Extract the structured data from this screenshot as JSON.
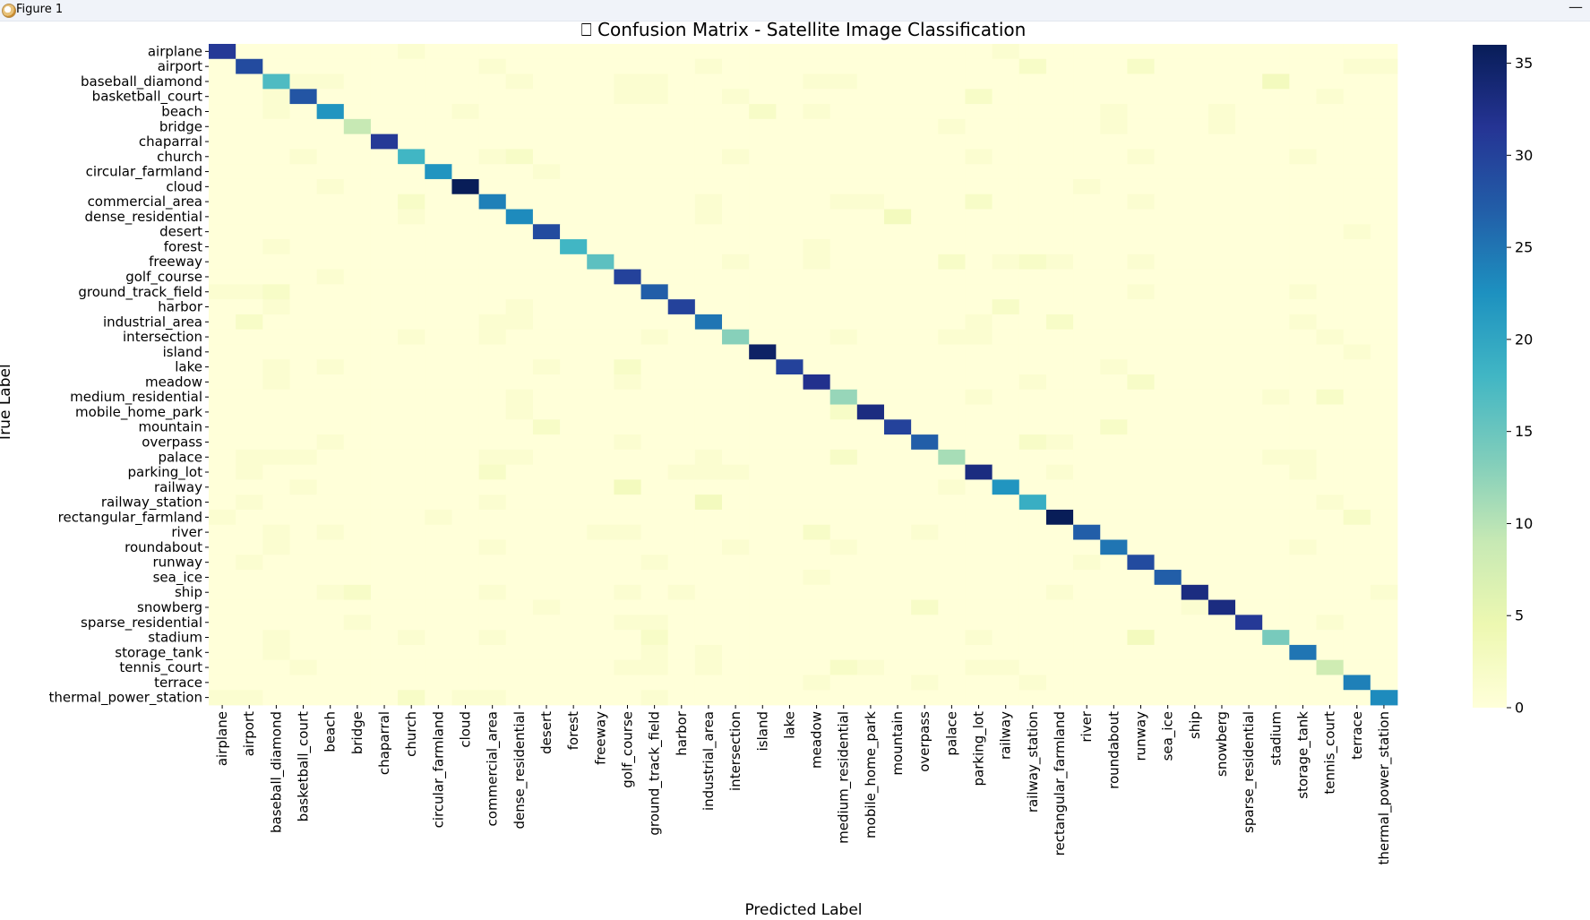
{
  "window": {
    "title": "Figure 1",
    "minimize_glyph": "—",
    "icon": "matplotlib-app-icon"
  },
  "chart_data": {
    "type": "heatmap",
    "title": "⎕ Confusion Matrix - Satellite Image Classification",
    "xlabel": "Predicted Label",
    "ylabel": "True Label",
    "colormap": "YlGnBu",
    "vmin": 0,
    "vmax": 36,
    "colorbar_ticks": [
      0,
      5,
      10,
      15,
      20,
      25,
      30,
      35
    ],
    "labels": [
      "airplane",
      "airport",
      "baseball_diamond",
      "basketball_court",
      "beach",
      "bridge",
      "chaparral",
      "church",
      "circular_farmland",
      "cloud",
      "commercial_area",
      "dense_residential",
      "desert",
      "forest",
      "freeway",
      "golf_course",
      "ground_track_field",
      "harbor",
      "industrial_area",
      "intersection",
      "island",
      "lake",
      "meadow",
      "medium_residential",
      "mobile_home_park",
      "mountain",
      "overpass",
      "palace",
      "parking_lot",
      "railway",
      "railway_station",
      "rectangular_farmland",
      "river",
      "roundabout",
      "runway",
      "sea_ice",
      "ship",
      "snowberg",
      "sparse_residential",
      "stadium",
      "storage_tank",
      "tennis_court",
      "terrace",
      "thermal_power_station"
    ],
    "diagonal": [
      31,
      29,
      17,
      28,
      22,
      9,
      31,
      18,
      22,
      36,
      24,
      23,
      29,
      18,
      16,
      30,
      27,
      30,
      25,
      13,
      35,
      30,
      32,
      12,
      33,
      30,
      27,
      11,
      33,
      22,
      19,
      36,
      27,
      25,
      29,
      27,
      33,
      33,
      31,
      14,
      25,
      8,
      24,
      23
    ],
    "off_diagonal": [
      [
        0,
        7,
        1
      ],
      [
        0,
        29,
        1
      ],
      [
        1,
        10,
        1
      ],
      [
        1,
        18,
        1
      ],
      [
        1,
        30,
        2
      ],
      [
        1,
        34,
        2
      ],
      [
        1,
        42,
        1
      ],
      [
        1,
        43,
        1
      ],
      [
        2,
        3,
        1
      ],
      [
        2,
        4,
        1
      ],
      [
        2,
        11,
        1
      ],
      [
        2,
        15,
        1
      ],
      [
        2,
        16,
        1
      ],
      [
        2,
        22,
        1
      ],
      [
        2,
        23,
        1
      ],
      [
        2,
        39,
        3
      ],
      [
        3,
        2,
        1
      ],
      [
        3,
        15,
        1
      ],
      [
        3,
        16,
        1
      ],
      [
        3,
        19,
        1
      ],
      [
        3,
        28,
        2
      ],
      [
        3,
        41,
        1
      ],
      [
        4,
        2,
        1
      ],
      [
        4,
        9,
        1
      ],
      [
        4,
        20,
        2
      ],
      [
        4,
        22,
        1
      ],
      [
        4,
        33,
        1
      ],
      [
        4,
        37,
        1
      ],
      [
        5,
        27,
        1
      ],
      [
        5,
        33,
        1
      ],
      [
        5,
        37,
        1
      ],
      [
        7,
        3,
        1
      ],
      [
        7,
        10,
        1
      ],
      [
        7,
        11,
        2
      ],
      [
        7,
        19,
        1
      ],
      [
        7,
        28,
        1
      ],
      [
        7,
        34,
        1
      ],
      [
        7,
        40,
        1
      ],
      [
        8,
        12,
        1
      ],
      [
        9,
        4,
        1
      ],
      [
        9,
        32,
        1
      ],
      [
        10,
        7,
        2
      ],
      [
        10,
        18,
        1
      ],
      [
        10,
        23,
        1
      ],
      [
        10,
        24,
        1
      ],
      [
        10,
        28,
        2
      ],
      [
        10,
        34,
        1
      ],
      [
        11,
        7,
        1
      ],
      [
        11,
        18,
        1
      ],
      [
        11,
        25,
        3
      ],
      [
        12,
        42,
        1
      ],
      [
        13,
        2,
        1
      ],
      [
        13,
        22,
        1
      ],
      [
        14,
        19,
        1
      ],
      [
        14,
        22,
        1
      ],
      [
        14,
        27,
        2
      ],
      [
        14,
        29,
        1
      ],
      [
        14,
        30,
        2
      ],
      [
        14,
        31,
        1
      ],
      [
        14,
        34,
        1
      ],
      [
        15,
        4,
        1
      ],
      [
        16,
        0,
        1
      ],
      [
        16,
        1,
        1
      ],
      [
        16,
        2,
        2
      ],
      [
        16,
        34,
        1
      ],
      [
        16,
        40,
        1
      ],
      [
        17,
        2,
        1
      ],
      [
        17,
        11,
        1
      ],
      [
        17,
        29,
        2
      ],
      [
        18,
        1,
        2
      ],
      [
        18,
        10,
        1
      ],
      [
        18,
        11,
        1
      ],
      [
        18,
        28,
        1
      ],
      [
        18,
        31,
        2
      ],
      [
        18,
        40,
        1
      ],
      [
        19,
        7,
        1
      ],
      [
        19,
        10,
        1
      ],
      [
        19,
        16,
        1
      ],
      [
        19,
        23,
        1
      ],
      [
        19,
        27,
        1
      ],
      [
        19,
        28,
        1
      ],
      [
        19,
        41,
        1
      ],
      [
        20,
        42,
        1
      ],
      [
        21,
        2,
        1
      ],
      [
        21,
        4,
        1
      ],
      [
        21,
        12,
        1
      ],
      [
        21,
        15,
        2
      ],
      [
        21,
        33,
        1
      ],
      [
        22,
        2,
        1
      ],
      [
        22,
        15,
        1
      ],
      [
        22,
        30,
        1
      ],
      [
        22,
        34,
        2
      ],
      [
        23,
        11,
        1
      ],
      [
        23,
        28,
        1
      ],
      [
        23,
        39,
        1
      ],
      [
        23,
        41,
        2
      ],
      [
        24,
        11,
        1
      ],
      [
        24,
        23,
        2
      ],
      [
        25,
        12,
        2
      ],
      [
        25,
        33,
        2
      ],
      [
        26,
        4,
        1
      ],
      [
        26,
        15,
        1
      ],
      [
        26,
        30,
        2
      ],
      [
        26,
        31,
        1
      ],
      [
        27,
        1,
        1
      ],
      [
        27,
        2,
        1
      ],
      [
        27,
        3,
        1
      ],
      [
        27,
        10,
        1
      ],
      [
        27,
        11,
        1
      ],
      [
        27,
        18,
        1
      ],
      [
        27,
        23,
        2
      ],
      [
        27,
        39,
        1
      ],
      [
        27,
        40,
        1
      ],
      [
        28,
        1,
        1
      ],
      [
        28,
        10,
        2
      ],
      [
        28,
        17,
        1
      ],
      [
        28,
        18,
        1
      ],
      [
        28,
        19,
        1
      ],
      [
        28,
        31,
        1
      ],
      [
        28,
        40,
        1
      ],
      [
        29,
        3,
        1
      ],
      [
        29,
        15,
        3
      ],
      [
        29,
        27,
        1
      ],
      [
        30,
        1,
        1
      ],
      [
        30,
        10,
        1
      ],
      [
        30,
        18,
        3
      ],
      [
        30,
        41,
        1
      ],
      [
        31,
        0,
        1
      ],
      [
        31,
        8,
        1
      ],
      [
        31,
        42,
        2
      ],
      [
        32,
        2,
        1
      ],
      [
        32,
        4,
        1
      ],
      [
        32,
        14,
        1
      ],
      [
        32,
        15,
        1
      ],
      [
        32,
        22,
        2
      ],
      [
        32,
        26,
        1
      ],
      [
        33,
        2,
        1
      ],
      [
        33,
        10,
        1
      ],
      [
        33,
        19,
        1
      ],
      [
        33,
        23,
        1
      ],
      [
        33,
        40,
        1
      ],
      [
        34,
        1,
        1
      ],
      [
        34,
        16,
        1
      ],
      [
        34,
        32,
        1
      ],
      [
        35,
        22,
        1
      ],
      [
        36,
        4,
        1
      ],
      [
        36,
        5,
        2
      ],
      [
        36,
        10,
        1
      ],
      [
        36,
        15,
        1
      ],
      [
        36,
        17,
        1
      ],
      [
        36,
        31,
        1
      ],
      [
        36,
        43,
        1
      ],
      [
        37,
        12,
        1
      ],
      [
        37,
        26,
        2
      ],
      [
        37,
        36,
        1
      ],
      [
        38,
        5,
        1
      ],
      [
        38,
        15,
        1
      ],
      [
        38,
        16,
        1
      ],
      [
        38,
        41,
        1
      ],
      [
        39,
        2,
        1
      ],
      [
        39,
        7,
        1
      ],
      [
        39,
        10,
        1
      ],
      [
        39,
        16,
        2
      ],
      [
        39,
        28,
        1
      ],
      [
        39,
        34,
        3
      ],
      [
        40,
        2,
        1
      ],
      [
        40,
        16,
        1
      ],
      [
        40,
        18,
        1
      ],
      [
        41,
        3,
        1
      ],
      [
        41,
        15,
        1
      ],
      [
        41,
        16,
        1
      ],
      [
        41,
        18,
        1
      ],
      [
        41,
        23,
        2
      ],
      [
        41,
        24,
        1
      ],
      [
        41,
        28,
        1
      ],
      [
        41,
        29,
        1
      ],
      [
        42,
        22,
        1
      ],
      [
        42,
        26,
        1
      ],
      [
        42,
        30,
        1
      ],
      [
        43,
        0,
        1
      ],
      [
        43,
        1,
        1
      ],
      [
        43,
        7,
        2
      ],
      [
        43,
        9,
        1
      ],
      [
        43,
        10,
        1
      ],
      [
        43,
        16,
        1
      ]
    ]
  }
}
